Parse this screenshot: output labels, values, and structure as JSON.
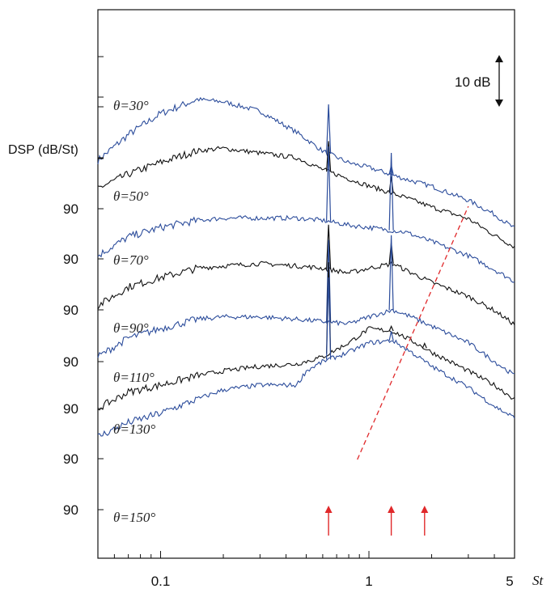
{
  "chart_data": {
    "type": "line",
    "ylabel": "DSP (dB/St)",
    "xlabel": "St",
    "xscale": "log",
    "xlim": [
      0.05,
      5
    ],
    "x_tick_labels": [
      "0.1",
      "1",
      "5"
    ],
    "y_tick_label": "90",
    "scale_bar_label": "10 dB",
    "grid": false,
    "legend": "none",
    "colors": {
      "blue": "#2b4c9b",
      "black": "#111111",
      "red": "#e0282a"
    },
    "series": [
      {
        "name": "θ=30°",
        "color": "blue",
        "points": [
          [
            0.05,
            -27
          ],
          [
            0.07,
            -16
          ],
          [
            0.1,
            -7
          ],
          [
            0.15,
            -1
          ],
          [
            0.2,
            -2
          ],
          [
            0.3,
            -6
          ],
          [
            0.45,
            -15
          ],
          [
            0.6,
            -23
          ],
          [
            0.8,
            -28
          ],
          [
            1,
            -30
          ],
          [
            1.5,
            -35
          ],
          [
            2,
            -38
          ],
          [
            3,
            -44
          ],
          [
            4,
            -50
          ],
          [
            5,
            -56
          ]
        ],
        "peaks": [
          [
            0.64,
            21
          ],
          [
            1.28,
            4
          ]
        ]
      },
      {
        "name": "θ=50°",
        "color": "black",
        "points": [
          [
            0.05,
            -13
          ],
          [
            0.07,
            -7
          ],
          [
            0.1,
            -2
          ],
          [
            0.15,
            3
          ],
          [
            0.2,
            4
          ],
          [
            0.3,
            2
          ],
          [
            0.45,
            0
          ],
          [
            0.6,
            -5
          ],
          [
            0.8,
            -9
          ],
          [
            1,
            -12
          ],
          [
            1.5,
            -17
          ],
          [
            2,
            -21
          ],
          [
            3,
            -26
          ],
          [
            4,
            -33
          ],
          [
            5,
            -38
          ]
        ],
        "peaks": [
          [
            0.64,
            13
          ],
          [
            1.28,
            7
          ]
        ]
      },
      {
        "name": "θ=70°",
        "color": "blue",
        "points": [
          [
            0.05,
            -20
          ],
          [
            0.07,
            -12
          ],
          [
            0.1,
            -8
          ],
          [
            0.15,
            -5
          ],
          [
            0.2,
            -4
          ],
          [
            0.3,
            -4
          ],
          [
            0.45,
            -4
          ],
          [
            0.6,
            -5
          ],
          [
            0.8,
            -7
          ],
          [
            1,
            -8
          ],
          [
            1.5,
            -10
          ],
          [
            2,
            -14
          ],
          [
            3,
            -20
          ],
          [
            4,
            -26
          ],
          [
            5,
            -31
          ]
        ],
        "peaks": [
          [
            0.64,
            32
          ],
          [
            1.28,
            33
          ]
        ]
      },
      {
        "name": "θ=90°",
        "color": "black",
        "points": [
          [
            0.05,
            -20
          ],
          [
            0.07,
            -12
          ],
          [
            0.1,
            -8
          ],
          [
            0.15,
            -4
          ],
          [
            0.2,
            -3
          ],
          [
            0.3,
            -2
          ],
          [
            0.45,
            -3
          ],
          [
            0.6,
            -4
          ],
          [
            0.8,
            -6
          ],
          [
            1,
            -4
          ],
          [
            1.3,
            -2
          ],
          [
            1.6,
            -6
          ],
          [
            2,
            -10
          ],
          [
            3,
            -16
          ],
          [
            4,
            -22
          ],
          [
            5,
            -28
          ]
        ],
        "peaks": [
          [
            0.64,
            19
          ],
          [
            1.28,
            9
          ]
        ]
      },
      {
        "name": "θ=110°",
        "color": "blue",
        "points": [
          [
            0.05,
            -20
          ],
          [
            0.07,
            -12
          ],
          [
            0.1,
            -8
          ],
          [
            0.15,
            -4
          ],
          [
            0.2,
            -3
          ],
          [
            0.3,
            -3
          ],
          [
            0.45,
            -4
          ],
          [
            0.6,
            -5
          ],
          [
            0.8,
            -6
          ],
          [
            1,
            -3
          ],
          [
            1.3,
            0
          ],
          [
            1.6,
            -3
          ],
          [
            2,
            -7
          ],
          [
            3,
            -14
          ],
          [
            4,
            -22
          ],
          [
            5,
            -28
          ]
        ],
        "peaks": [
          [
            0.64,
            35
          ],
          [
            1.28,
            32
          ]
        ]
      },
      {
        "name": "θ=130°",
        "color": "black",
        "points": [
          [
            0.05,
            -20
          ],
          [
            0.07,
            -13
          ],
          [
            0.1,
            -10
          ],
          [
            0.15,
            -6
          ],
          [
            0.2,
            -4
          ],
          [
            0.3,
            -2
          ],
          [
            0.45,
            -1
          ],
          [
            0.6,
            2
          ],
          [
            0.8,
            8
          ],
          [
            1,
            14
          ],
          [
            1.3,
            13
          ],
          [
            1.6,
            9
          ],
          [
            2,
            4
          ],
          [
            3,
            -4
          ],
          [
            4,
            -10
          ],
          [
            5,
            -16
          ]
        ],
        "peaks": [
          [
            0.64,
            39
          ],
          [
            1.28,
            2
          ],
          [
            1.85,
            2
          ]
        ]
      },
      {
        "name": "θ=150°",
        "color": "blue",
        "points": [
          [
            0.05,
            -12
          ],
          [
            0.07,
            -6
          ],
          [
            0.1,
            -2
          ],
          [
            0.15,
            4
          ],
          [
            0.2,
            8
          ],
          [
            0.3,
            10
          ],
          [
            0.45,
            10
          ],
          [
            0.5,
            16
          ],
          [
            0.6,
            20
          ],
          [
            0.8,
            24
          ],
          [
            1,
            28
          ],
          [
            1.3,
            29
          ],
          [
            1.6,
            24
          ],
          [
            2,
            18
          ],
          [
            3,
            9
          ],
          [
            4,
            1
          ],
          [
            5,
            -4
          ]
        ],
        "peaks": [
          [
            0.64,
            35
          ],
          [
            1.28,
            4
          ]
        ]
      }
    ],
    "red_dashed_line": [
      [
        0.88,
        -8
      ],
      [
        3.0,
        78
      ]
    ],
    "red_arrows_at_St": [
      0.64,
      1.28,
      1.85
    ]
  }
}
